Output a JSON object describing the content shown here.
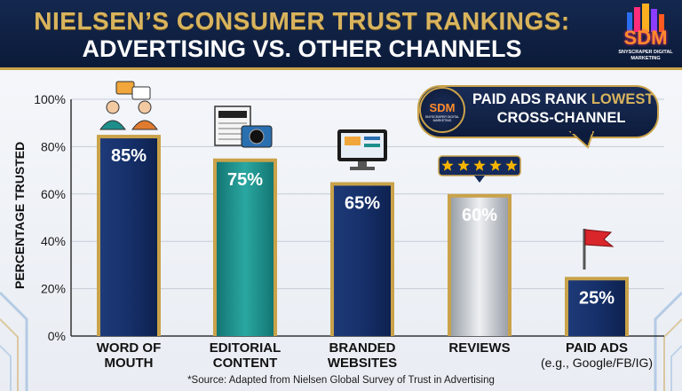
{
  "header": {
    "title_line1": "NIELSEN’S CONSUMER TRUST RANKINGS:",
    "title_line2": "ADVERTISING VS. OTHER CHANNELS",
    "logo_text": "SDM",
    "logo_subtitle": "SNYSCRAPER DIGITAL MARKETING"
  },
  "callout": {
    "logo_text": "SDM",
    "logo_subtitle": "SNYSCRAPER DIGITAL MARKETING",
    "line1_part1": "PAID ADS RANK ",
    "line1_part2": "LOWEST",
    "line2": "CROSS-CHANNEL"
  },
  "source": "*Source: Adapted from Nielsen Global Survey of Trust in Advertising",
  "colors": {
    "navy": "#142a5c",
    "teal": "#1d8e8a",
    "silver": "#b9bec5",
    "gold": "#c9a24a",
    "red_flag": "#d9262b"
  },
  "chart_data": {
    "type": "bar",
    "ylabel": "PERCENTAGE TRUSTED",
    "ylim": [
      0,
      100
    ],
    "yticks": [
      "0%",
      "20%",
      "40%",
      "60%",
      "80%",
      "100%"
    ],
    "grid": true,
    "categories": [
      {
        "line1": "WORD OF",
        "line2": "MOUTH"
      },
      {
        "line1": "EDITORIAL",
        "line2": "CONTENT"
      },
      {
        "line1": "BRANDED",
        "line2": "WEBSITES"
      },
      {
        "line1": "REVIEWS",
        "line2": ""
      },
      {
        "line1": "PAID ADS",
        "line2": "(e.g., Google/FB/IG)"
      }
    ],
    "values": [
      85,
      75,
      65,
      60,
      25
    ],
    "value_labels": [
      "85%",
      "75%",
      "65%",
      "60%",
      "25%"
    ],
    "bar_styles": [
      "navy",
      "teal",
      "navy",
      "silver",
      "navy"
    ],
    "icons": [
      "chat-people-icon",
      "newspaper-camera-icon",
      "monitor-icon",
      "five-star-rating-icon",
      "red-flag-icon"
    ]
  }
}
